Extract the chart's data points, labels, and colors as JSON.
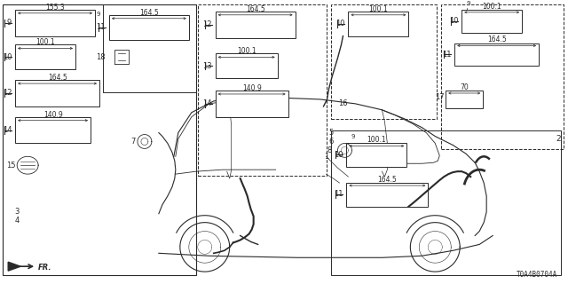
{
  "bg_color": "#ffffff",
  "lc": "#2a2a2a",
  "part_code": "T0A4B0704A",
  "fig_w": 6.4,
  "fig_h": 3.2,
  "dpi": 100
}
